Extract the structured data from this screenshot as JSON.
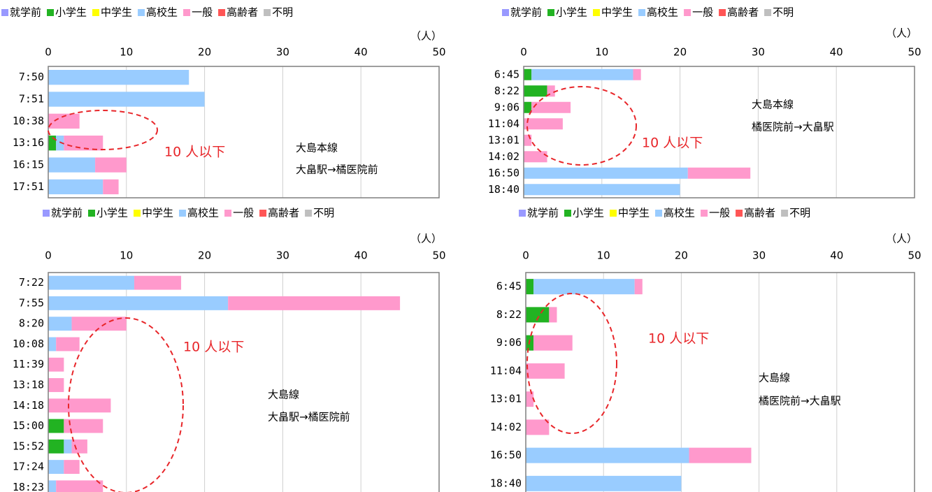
{
  "chart_data": [
    {
      "type": "bar",
      "orientation": "horizontal",
      "stacked": true,
      "unit": "（人）",
      "annotation": "10 人以下",
      "notes": [
        "大島本線",
        "大畠駅→橘医院前"
      ],
      "categories": [
        "7:50",
        "7:51",
        "10:38",
        "13:16",
        "16:15",
        "17:51"
      ],
      "xlim": [
        0,
        50
      ],
      "xticks": [
        0,
        10,
        20,
        30,
        40,
        50
      ],
      "grid": true,
      "legend": "top",
      "series": [
        {
          "name": "就学前",
          "color": "#9999ff",
          "values": [
            0,
            0,
            0,
            0,
            0,
            0
          ]
        },
        {
          "name": "小学生",
          "color": "#22b322",
          "values": [
            0,
            0,
            0,
            1,
            0,
            0
          ]
        },
        {
          "name": "中学生",
          "color": "#ffff00",
          "values": [
            0,
            0,
            0,
            0,
            0,
            0
          ]
        },
        {
          "name": "高校生",
          "color": "#99ccff",
          "values": [
            18,
            20,
            0,
            1,
            6,
            7
          ]
        },
        {
          "name": "一般",
          "color": "#ff99cc",
          "values": [
            0,
            0,
            4,
            5,
            4,
            2
          ]
        },
        {
          "name": "高齢者",
          "color": "#ff5555",
          "values": [
            0,
            0,
            0,
            0,
            0,
            0
          ]
        },
        {
          "name": "不明",
          "color": "#bfbfbf",
          "values": [
            0,
            0,
            0,
            0,
            0,
            0
          ]
        }
      ]
    },
    {
      "type": "bar",
      "orientation": "horizontal",
      "stacked": true,
      "unit": "（人）",
      "annotation": "10 人以下",
      "notes": [
        "大島本線",
        "橘医院前→大畠駅"
      ],
      "categories": [
        "6:45",
        "8:22",
        "9:06",
        "11:04",
        "13:01",
        "14:02",
        "16:50",
        "18:40"
      ],
      "xlim": [
        0,
        50
      ],
      "xticks": [
        0,
        10,
        20,
        30,
        40,
        50
      ],
      "grid": true,
      "legend": "top",
      "series": [
        {
          "name": "就学前",
          "color": "#9999ff",
          "values": [
            0,
            0,
            0,
            0,
            0,
            0,
            0,
            0
          ]
        },
        {
          "name": "小学生",
          "color": "#22b322",
          "values": [
            1,
            3,
            1,
            0,
            0,
            0,
            0,
            0
          ]
        },
        {
          "name": "中学生",
          "color": "#ffff00",
          "values": [
            0,
            0,
            0,
            0,
            0,
            0,
            0,
            0
          ]
        },
        {
          "name": "高校生",
          "color": "#99ccff",
          "values": [
            13,
            0,
            0,
            0,
            0,
            0,
            21,
            20
          ]
        },
        {
          "name": "一般",
          "color": "#ff99cc",
          "values": [
            1,
            1,
            5,
            5,
            1,
            3,
            8,
            0
          ]
        },
        {
          "name": "高齢者",
          "color": "#ff5555",
          "values": [
            0,
            0,
            0,
            0,
            0,
            0,
            0,
            0
          ]
        },
        {
          "name": "不明",
          "color": "#bfbfbf",
          "values": [
            0,
            0,
            0,
            0,
            0,
            0,
            0,
            0
          ]
        }
      ]
    },
    {
      "type": "bar",
      "orientation": "horizontal",
      "stacked": true,
      "unit": "（人）",
      "annotation": "10 人以下",
      "notes": [
        "大島線",
        "大畠駅→橘医院前"
      ],
      "categories": [
        "7:22",
        "7:55",
        "8:20",
        "10:08",
        "11:39",
        "13:18",
        "14:18",
        "15:00",
        "15:52",
        "17:24",
        "18:23"
      ],
      "xlim": [
        0,
        50
      ],
      "xticks": [
        0,
        10,
        20,
        30,
        40,
        50
      ],
      "grid": true,
      "legend": "top",
      "series": [
        {
          "name": "就学前",
          "color": "#9999ff",
          "values": [
            0,
            0,
            0,
            0,
            0,
            0,
            0,
            0,
            0,
            0,
            0
          ]
        },
        {
          "name": "小学生",
          "color": "#22b322",
          "values": [
            0,
            0,
            0,
            0,
            0,
            0,
            0,
            2,
            2,
            0,
            0
          ]
        },
        {
          "name": "中学生",
          "color": "#ffff00",
          "values": [
            0,
            0,
            0,
            0,
            0,
            0,
            0,
            0,
            0,
            0,
            0
          ]
        },
        {
          "name": "高校生",
          "color": "#99ccff",
          "values": [
            11,
            23,
            3,
            1,
            0,
            0,
            0,
            0,
            1,
            2,
            1
          ]
        },
        {
          "name": "一般",
          "color": "#ff99cc",
          "values": [
            6,
            22,
            7,
            3,
            2,
            2,
            8,
            5,
            2,
            2,
            6
          ]
        },
        {
          "name": "高齢者",
          "color": "#ff5555",
          "values": [
            0,
            0,
            0,
            0,
            0,
            0,
            0,
            0,
            0,
            0,
            0
          ]
        },
        {
          "name": "不明",
          "color": "#bfbfbf",
          "values": [
            0,
            0,
            0,
            0,
            0,
            0,
            0,
            0,
            0,
            0,
            0
          ]
        }
      ]
    },
    {
      "type": "bar",
      "orientation": "horizontal",
      "stacked": true,
      "unit": "（人）",
      "annotation": "10 人以下",
      "notes": [
        "大島線",
        "橘医院前→大畠駅"
      ],
      "categories": [
        "6:45",
        "8:22",
        "9:06",
        "11:04",
        "13:01",
        "14:02",
        "16:50",
        "18:40"
      ],
      "xlim": [
        0,
        50
      ],
      "xticks": [
        0,
        10,
        20,
        30,
        40,
        50
      ],
      "grid": true,
      "legend": "top",
      "series": [
        {
          "name": "就学前",
          "color": "#9999ff",
          "values": [
            0,
            0,
            0,
            0,
            0,
            0,
            0,
            0
          ]
        },
        {
          "name": "小学生",
          "color": "#22b322",
          "values": [
            1,
            3,
            1,
            0,
            0,
            0,
            0,
            0
          ]
        },
        {
          "name": "中学生",
          "color": "#ffff00",
          "values": [
            0,
            0,
            0,
            0,
            0,
            0,
            0,
            0
          ]
        },
        {
          "name": "高校生",
          "color": "#99ccff",
          "values": [
            13,
            0,
            0,
            0,
            0,
            0,
            21,
            20
          ]
        },
        {
          "name": "一般",
          "color": "#ff99cc",
          "values": [
            1,
            1,
            5,
            5,
            1,
            3,
            8,
            0
          ]
        },
        {
          "name": "高齢者",
          "color": "#ff5555",
          "values": [
            0,
            0,
            0,
            0,
            0,
            0,
            0,
            0
          ]
        },
        {
          "name": "不明",
          "color": "#bfbfbf",
          "values": [
            0,
            0,
            0,
            0,
            0,
            0,
            0,
            0
          ]
        }
      ]
    }
  ]
}
